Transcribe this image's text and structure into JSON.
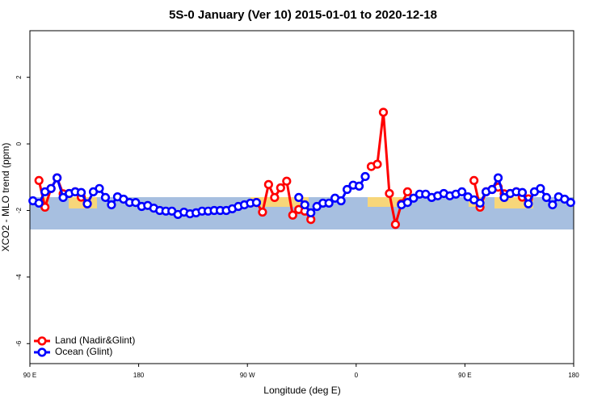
{
  "chart_data": {
    "type": "line",
    "title": "5S-0 January (Ver 10)   2015-01-01 to 2020-12-18",
    "x_label": "Longitude (deg E)",
    "y_label": "XCO2 - MLO trend (ppm)",
    "x": [
      92.5,
      97.5,
      102.5,
      107.5,
      112.5,
      117.5,
      122.5,
      127.5,
      132.5,
      137.5,
      142.5,
      147.5,
      152.5,
      157.5,
      162.5,
      167.5,
      172.5,
      177.5,
      182.5,
      187.5,
      192.5,
      197.5,
      202.5,
      207.5,
      212.5,
      217.5,
      222.5,
      227.5,
      232.5,
      237.5,
      242.5,
      247.5,
      252.5,
      257.5,
      262.5,
      267.5,
      272.5,
      277.5,
      282.5,
      287.5,
      292.5,
      297.5,
      302.5,
      307.5,
      312.5,
      317.5,
      322.5,
      327.5,
      332.5,
      337.5,
      342.5,
      347.5,
      352.5,
      357.5,
      362.5,
      367.5,
      372.5,
      377.5,
      382.5,
      387.5,
      392.5,
      397.5,
      402.5,
      407.5,
      412.5,
      417.5,
      422.5,
      427.5,
      432.5,
      437.5,
      442.5,
      447.5,
      452.5,
      457.5,
      462.5,
      467.5,
      472.5,
      477.5,
      482.5,
      487.5,
      492.5,
      497.5,
      502.5,
      507.5,
      512.5,
      517.5,
      522.5,
      527.5,
      532.5,
      537.5
    ],
    "series": [
      {
        "name": "Land (Nadir&Glint)",
        "color": "#ff0000",
        "values": [
          null,
          -1.1,
          -1.9,
          -1.34,
          -1.02,
          -1.5,
          -1.49,
          -1.44,
          -1.6,
          -1.8,
          null,
          null,
          null,
          null,
          null,
          null,
          null,
          null,
          null,
          null,
          null,
          null,
          null,
          null,
          null,
          null,
          null,
          null,
          null,
          null,
          null,
          null,
          null,
          null,
          null,
          null,
          null,
          -1.76,
          -2.05,
          -1.22,
          -1.61,
          -1.32,
          -1.12,
          -2.14,
          -1.97,
          -2.02,
          -2.27,
          null,
          null,
          null,
          null,
          null,
          null,
          null,
          null,
          null,
          -0.68,
          -0.61,
          0.95,
          -1.49,
          -2.42,
          -1.8,
          -1.44,
          null,
          null,
          null,
          null,
          null,
          null,
          null,
          null,
          null,
          null,
          -1.1,
          -1.9,
          -1.44,
          -1.37,
          -1.3,
          -1.5,
          -1.49,
          -1.44,
          -1.6,
          -1.65,
          null,
          null,
          null,
          null,
          null,
          null,
          null
        ]
      },
      {
        "name": "Ocean (Glint)",
        "color": "#0000ff",
        "values": [
          -1.71,
          -1.78,
          -1.44,
          -1.34,
          -1.02,
          -1.61,
          -1.49,
          -1.44,
          -1.46,
          -1.8,
          -1.44,
          -1.34,
          -1.61,
          -1.83,
          -1.59,
          -1.66,
          -1.76,
          -1.76,
          -1.88,
          -1.85,
          -1.93,
          -2.0,
          -2.02,
          -2.02,
          -2.12,
          -2.05,
          -2.1,
          -2.07,
          -2.02,
          -2.02,
          -2.0,
          -2.0,
          -2.0,
          -1.95,
          -1.88,
          -1.83,
          -1.78,
          -1.76,
          null,
          null,
          null,
          null,
          null,
          null,
          -1.61,
          -1.83,
          -2.07,
          -1.88,
          -1.78,
          -1.78,
          -1.63,
          -1.71,
          -1.37,
          -1.24,
          -1.27,
          -0.98,
          null,
          null,
          null,
          null,
          null,
          -1.83,
          -1.76,
          -1.63,
          -1.51,
          -1.51,
          -1.61,
          -1.56,
          -1.49,
          -1.56,
          -1.51,
          -1.44,
          -1.59,
          -1.68,
          -1.78,
          -1.44,
          -1.37,
          -1.02,
          -1.61,
          -1.49,
          -1.44,
          -1.46,
          -1.8,
          -1.44,
          -1.34,
          -1.61,
          -1.83,
          -1.59,
          -1.66,
          -1.76
        ]
      }
    ],
    "xlim": [
      90,
      540
    ],
    "xticks": [
      {
        "value": 90,
        "label": "90 E"
      },
      180,
      {
        "value": 270,
        "label": "90 W"
      },
      {
        "value": 360,
        "label": "0"
      },
      {
        "value": 450,
        "label": "90 E"
      },
      {
        "value": 540,
        "label": "180"
      }
    ],
    "ylim": [
      -6.6,
      3.4
    ],
    "yticks": [
      -6,
      -4,
      -2,
      0,
      2
    ],
    "legend": "bottom-left"
  }
}
